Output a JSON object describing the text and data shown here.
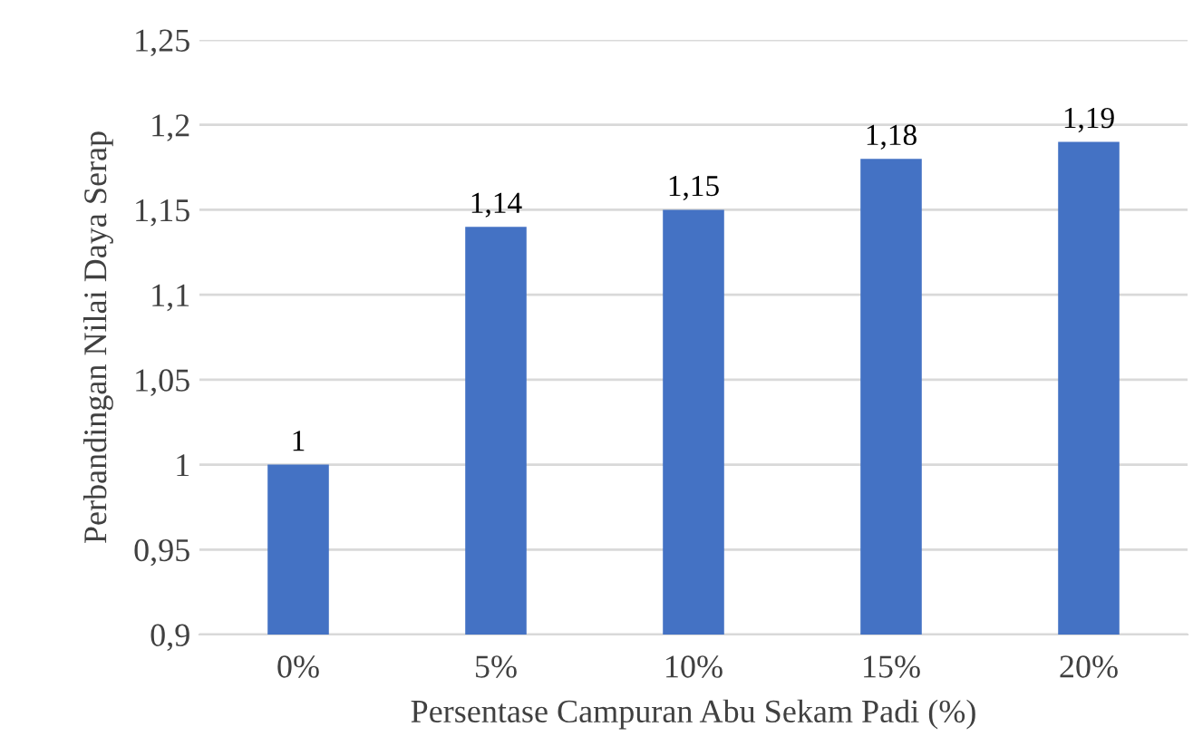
{
  "chart_data": {
    "type": "bar",
    "xlabel": "Persentase Campuran Abu Sekam Padi (%)",
    "ylabel": "Perbandingan Nilai Daya Serap",
    "categories": [
      "0%",
      "5%",
      "10%",
      "15%",
      "20%"
    ],
    "values": [
      1,
      1.14,
      1.15,
      1.18,
      1.19
    ],
    "color": "#4472c4",
    "data_labels": true,
    "value_labels": [
      "1",
      "1,14",
      "1,15",
      "1,18",
      "1,19"
    ],
    "ylim": [
      0.9,
      1.25
    ],
    "yticks": [
      {
        "value": 0.9,
        "label": "0,9"
      },
      {
        "value": 0.95,
        "label": "0,95"
      },
      {
        "value": 1,
        "label": "1"
      },
      {
        "value": 1.05,
        "label": "1,05"
      },
      {
        "value": 1.1,
        "label": "1,1"
      },
      {
        "value": 1.15,
        "label": "1,15"
      },
      {
        "value": 1.2,
        "label": "1,2"
      },
      {
        "value": 1.25,
        "label": "1,25"
      }
    ],
    "grid": "y"
  }
}
